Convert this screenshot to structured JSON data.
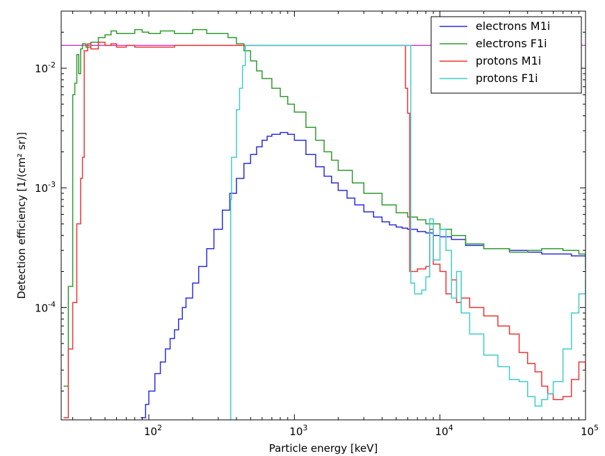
{
  "chart_data": {
    "type": "line",
    "title": "",
    "xlabel": "Particle energy [keV]",
    "ylabel": "Detection efficiency [1/(cm² sr)]",
    "xscale": "log",
    "yscale": "log",
    "xlim": [
      25,
      100000
    ],
    "ylim": [
      1.15e-05,
      0.03
    ],
    "grid": false,
    "legend_position": "top-right",
    "x_tick_labels": [
      {
        "value": 100,
        "base": "10",
        "exp": "2"
      },
      {
        "value": 1000,
        "base": "10",
        "exp": "3"
      },
      {
        "value": 10000,
        "base": "10",
        "exp": "4"
      },
      {
        "value": 100000,
        "base": "10",
        "exp": "5"
      }
    ],
    "y_tick_labels": [
      {
        "value": 0.0001,
        "base": "10",
        "exp": "-4"
      },
      {
        "value": 0.001,
        "base": "10",
        "exp": "-3"
      },
      {
        "value": 0.01,
        "base": "10",
        "exp": "-2"
      }
    ],
    "reference_line": {
      "y": 0.0155,
      "color": "#cc33cc"
    },
    "series": [
      {
        "name": "electrons M1i",
        "color": "#2b2bdd",
        "x": [
          88,
          95,
          100,
          110,
          120,
          130,
          140,
          150,
          160,
          170,
          180,
          200,
          220,
          250,
          280,
          320,
          360,
          400,
          450,
          500,
          550,
          600,
          650,
          700,
          800,
          900,
          1000,
          1200,
          1400,
          1600,
          1800,
          2000,
          2300,
          2600,
          3000,
          3500,
          4000,
          4500,
          5000,
          5500,
          6000,
          7000,
          8000,
          9000,
          10000,
          12000,
          15000,
          20000,
          30000,
          40000,
          50000,
          60000,
          70000,
          80000,
          90000,
          100000
        ],
        "y": [
          1.2e-05,
          1.55e-05,
          2e-05,
          2.8e-05,
          3.5e-05,
          4.5e-05,
          5.5e-05,
          6.5e-05,
          8e-05,
          0.0001,
          0.00012,
          0.00016,
          0.00022,
          0.00031,
          0.00045,
          0.00065,
          0.0009,
          0.0012,
          0.0016,
          0.0019,
          0.0022,
          0.0025,
          0.0027,
          0.0028,
          0.0029,
          0.0028,
          0.0025,
          0.0019,
          0.0015,
          0.00125,
          0.0011,
          0.00095,
          0.00082,
          0.00072,
          0.00063,
          0.00057,
          0.00052,
          0.00049,
          0.00047,
          0.00046,
          0.00045,
          0.00043,
          0.00042,
          0.0004,
          0.00039,
          0.00037,
          0.00033,
          0.00031,
          0.0003,
          0.00029,
          0.00028,
          0.00028,
          0.00028,
          0.00027,
          0.00027,
          0.00026
        ]
      },
      {
        "name": "electrons F1i",
        "color": "#2e9a2e",
        "x": [
          26,
          28,
          30,
          31,
          32,
          33,
          34,
          35,
          37,
          40,
          45,
          50,
          55,
          60,
          70,
          80,
          90,
          100,
          120,
          150,
          200,
          250,
          300,
          350,
          400,
          450,
          500,
          550,
          600,
          700,
          800,
          900,
          1000,
          1200,
          1400,
          1600,
          1800,
          2000,
          2500,
          3000,
          4000,
          5000,
          6000,
          7000,
          8000,
          10000,
          12000,
          15000,
          20000,
          30000,
          40000,
          50000,
          70000,
          90000,
          100000
        ],
        "y": [
          2.2e-05,
          0.00015,
          0.006,
          0.0075,
          0.013,
          0.009,
          0.0145,
          0.016,
          0.015,
          0.0165,
          0.018,
          0.019,
          0.0205,
          0.0195,
          0.0195,
          0.021,
          0.02,
          0.0195,
          0.0205,
          0.0195,
          0.021,
          0.0195,
          0.0195,
          0.018,
          0.016,
          0.014,
          0.0115,
          0.0095,
          0.0082,
          0.0068,
          0.0058,
          0.005,
          0.0043,
          0.0032,
          0.0025,
          0.002,
          0.0017,
          0.0014,
          0.0011,
          0.0009,
          0.00072,
          0.00062,
          0.00057,
          0.00054,
          0.0005,
          0.00045,
          0.0004,
          0.00034,
          0.00031,
          0.00029,
          0.0003,
          0.00031,
          0.0003,
          0.00028,
          0.00021
        ]
      },
      {
        "name": "protons M1i",
        "color": "#ee3333",
        "x": [
          26,
          28,
          30,
          32,
          34,
          35,
          36,
          38,
          40,
          45,
          50,
          55,
          60,
          70,
          80,
          100,
          150,
          200,
          300,
          400,
          500,
          1000,
          2000,
          3000,
          4000,
          5000,
          5800,
          6000,
          6200,
          7000,
          8000,
          8500,
          9000,
          10000,
          11000,
          12000,
          13000,
          14000,
          16000,
          20000,
          25000,
          30000,
          35000,
          40000,
          45000,
          50000,
          55000,
          60000,
          70000,
          80000,
          90000,
          100000
        ],
        "y": [
          1.2e-05,
          4.5e-05,
          0.00011,
          0.0005,
          0.0012,
          0.0018,
          0.014,
          0.016,
          0.0145,
          0.0165,
          0.0155,
          0.016,
          0.015,
          0.0155,
          0.015,
          0.015,
          0.0155,
          0.0155,
          0.0155,
          0.0155,
          0.0155,
          0.0155,
          0.0155,
          0.0155,
          0.0155,
          0.0155,
          0.0068,
          0.0042,
          0.0002,
          0.00021,
          0.00022,
          0.00045,
          0.00023,
          0.0002,
          0.00013,
          0.00017,
          0.00011,
          0.00012,
          0.0001,
          8.5e-05,
          7e-05,
          6e-05,
          4.2e-05,
          3.4e-05,
          2.9e-05,
          2.2e-05,
          1.9e-05,
          1.7e-05,
          1.8e-05,
          2.5e-05,
          3.5e-05,
          3e-05
        ]
      },
      {
        "name": "protons F1i",
        "color": "#3ccccc",
        "x": [
          360,
          365,
          370,
          400,
          420,
          440,
          460,
          500,
          600,
          1000,
          2000,
          3000,
          4000,
          5000,
          6000,
          6300,
          6700,
          7500,
          8000,
          8500,
          9000,
          10000,
          11000,
          12000,
          13000,
          14000,
          16000,
          20000,
          25000,
          30000,
          35000,
          40000,
          45000,
          50000,
          55000,
          60000,
          70000,
          80000,
          90000,
          100000
        ],
        "y": [
          1.15e-05,
          0.0008,
          0.0018,
          0.0045,
          0.0068,
          0.0105,
          0.0155,
          0.0155,
          0.0155,
          0.0155,
          0.0155,
          0.0155,
          0.0155,
          0.0155,
          0.0155,
          0.00016,
          0.00013,
          0.00014,
          0.00018,
          0.00055,
          0.00025,
          0.00045,
          0.0003,
          0.00012,
          0.0002,
          9e-05,
          6e-05,
          4e-05,
          3.2e-05,
          2.5e-05,
          2.4e-05,
          1.8e-05,
          1.5e-05,
          1.7e-05,
          1.9e-05,
          2.4e-05,
          4.5e-05,
          9e-05,
          0.00013,
          0.00017
        ]
      }
    ]
  }
}
